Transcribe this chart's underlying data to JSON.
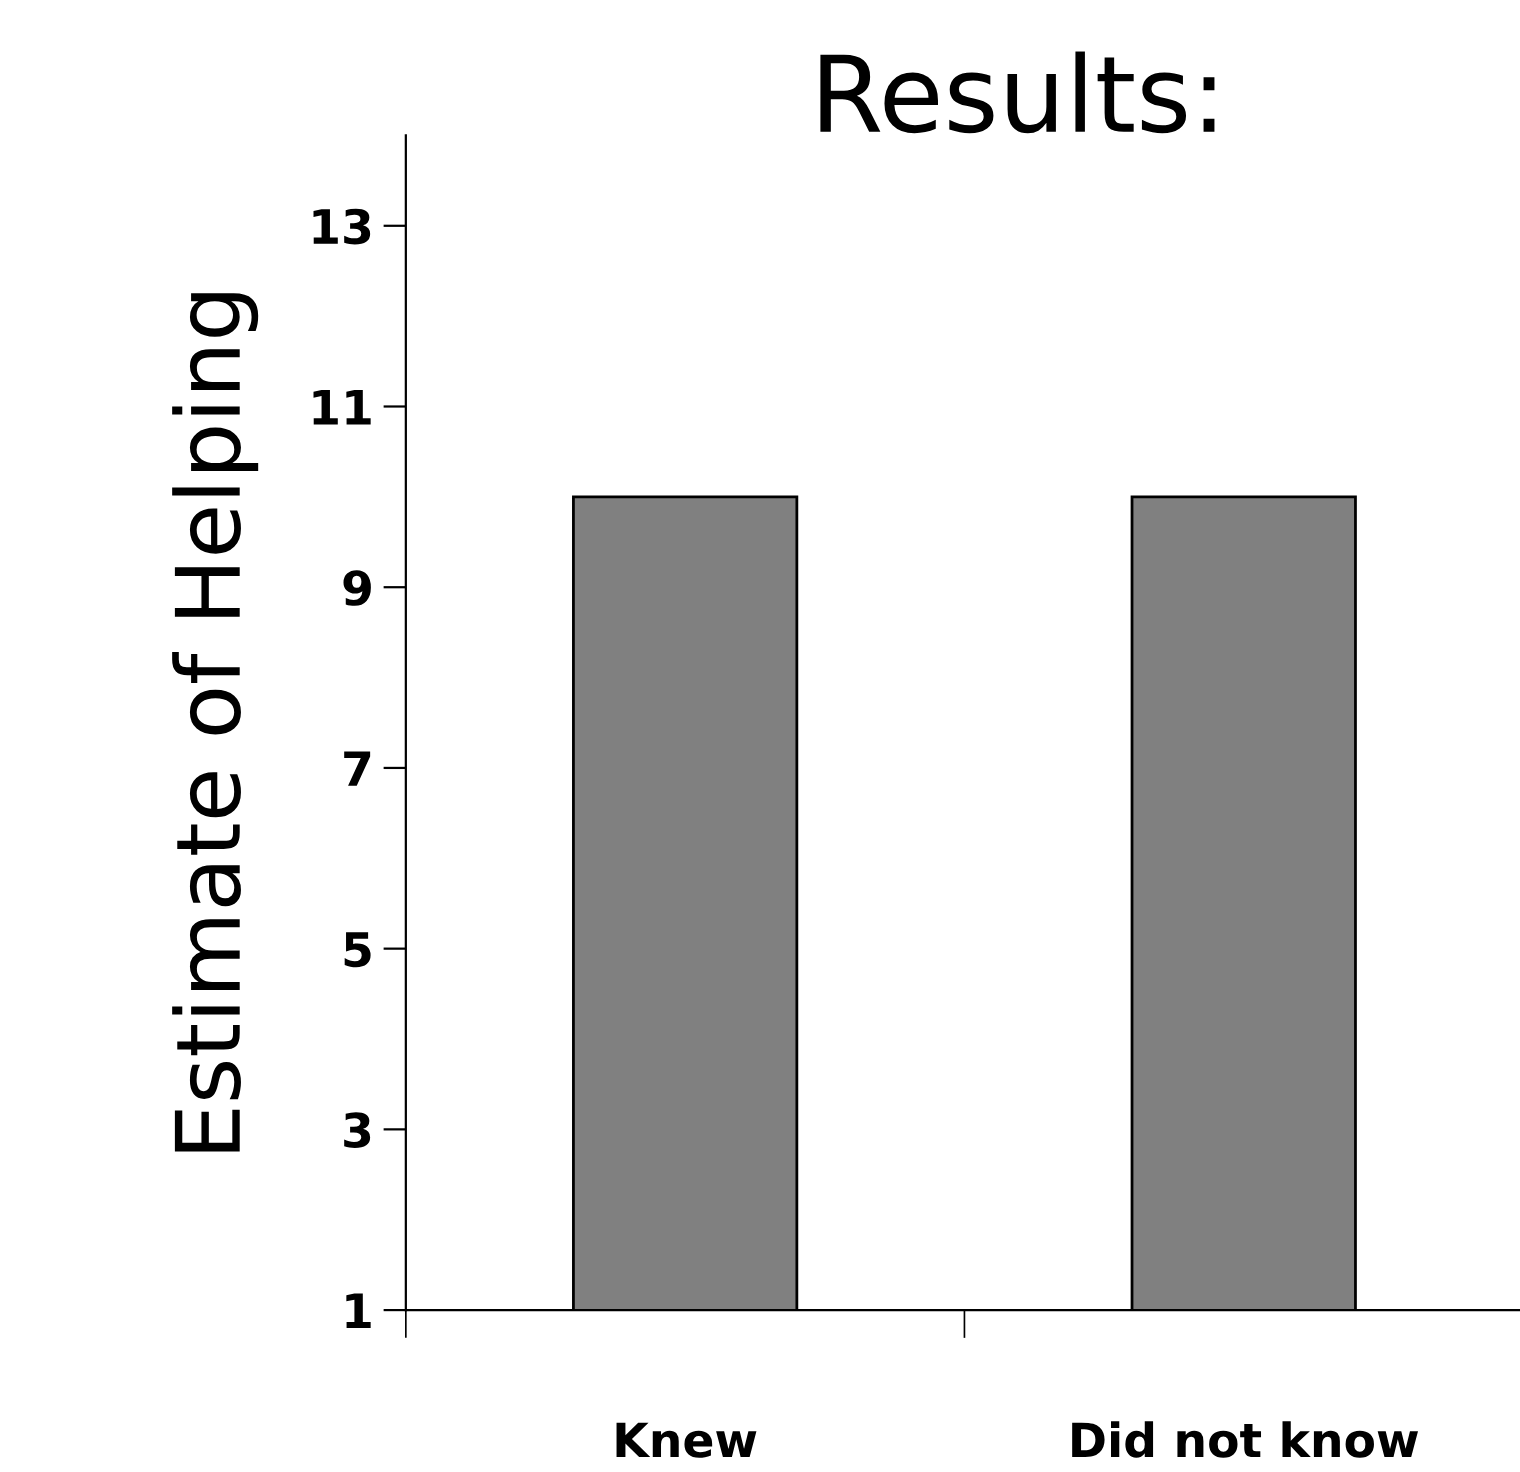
{
  "chart_data": {
    "type": "bar",
    "title": "Results:",
    "ylabel": "Estimate of Helping",
    "categories": [
      "Knew",
      "Did not know"
    ],
    "values": [
      10,
      10
    ],
    "color": "#808080",
    "ylim": [
      1,
      14
    ],
    "yticks": [
      1,
      3,
      5,
      7,
      9,
      11,
      13
    ],
    "grid": false,
    "legend": false
  }
}
